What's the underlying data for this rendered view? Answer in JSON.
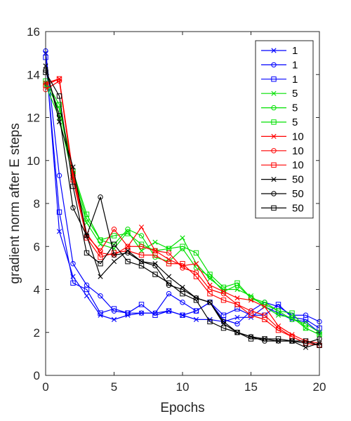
{
  "chart_data": {
    "type": "line",
    "title": "",
    "xlabel": "Epochs",
    "ylabel": "gradient norm after E steps",
    "xlim": [
      0,
      20
    ],
    "ylim": [
      0,
      16
    ],
    "xticks": [
      0,
      5,
      10,
      15,
      20
    ],
    "yticks": [
      0,
      2,
      4,
      6,
      8,
      10,
      12,
      14,
      16
    ],
    "grid": false,
    "legend_position": "top-right",
    "x": [
      0,
      1,
      2,
      3,
      4,
      5,
      6,
      7,
      8,
      9,
      10,
      11,
      12,
      13,
      14,
      15,
      16,
      17,
      18,
      19,
      20
    ],
    "series": [
      {
        "name": "1",
        "color": "#0000ff",
        "marker": "x",
        "values": [
          15.0,
          6.7,
          4.6,
          3.7,
          2.8,
          2.6,
          2.8,
          2.9,
          2.9,
          3.0,
          2.8,
          2.6,
          2.6,
          2.5,
          2.7,
          2.7,
          3.2,
          2.9,
          2.6,
          2.5,
          2.0
        ]
      },
      {
        "name": "1",
        "color": "#0000ff",
        "marker": "circle",
        "values": [
          15.1,
          9.3,
          5.2,
          4.2,
          3.7,
          3.0,
          2.9,
          2.9,
          2.9,
          3.8,
          3.4,
          3.0,
          3.4,
          2.6,
          2.4,
          3.0,
          3.4,
          3.2,
          2.8,
          2.8,
          2.5
        ]
      },
      {
        "name": "1",
        "color": "#0000ff",
        "marker": "square",
        "values": [
          14.8,
          7.6,
          4.3,
          4.0,
          2.9,
          3.1,
          2.9,
          3.3,
          2.8,
          3.0,
          2.8,
          3.0,
          3.4,
          2.8,
          3.1,
          2.8,
          2.8,
          3.3,
          2.7,
          2.6,
          2.2
        ]
      },
      {
        "name": "5",
        "color": "#00e000",
        "marker": "x",
        "values": [
          13.5,
          12.0,
          9.2,
          7.1,
          6.1,
          5.9,
          6.7,
          5.8,
          6.2,
          5.9,
          6.4,
          5.2,
          4.5,
          4.0,
          4.0,
          3.7,
          3.2,
          2.8,
          2.7,
          2.2,
          1.9
        ]
      },
      {
        "name": "5",
        "color": "#00e000",
        "marker": "circle",
        "values": [
          13.6,
          12.4,
          9.4,
          7.3,
          6.3,
          6.1,
          6.8,
          6.5,
          5.5,
          5.3,
          5.9,
          5.0,
          4.6,
          3.9,
          4.2,
          3.6,
          3.4,
          3.0,
          2.6,
          2.4,
          2.0
        ]
      },
      {
        "name": "5",
        "color": "#00e000",
        "marker": "square",
        "values": [
          13.7,
          12.6,
          9.5,
          7.5,
          6.3,
          6.5,
          6.6,
          6.1,
          5.8,
          5.9,
          6.0,
          5.7,
          4.7,
          4.1,
          4.3,
          3.6,
          3.3,
          3.0,
          2.9,
          2.2,
          1.9
        ]
      },
      {
        "name": "10",
        "color": "#ff0000",
        "marker": "x",
        "values": [
          13.6,
          13.8,
          9.4,
          6.6,
          5.7,
          5.6,
          6.0,
          6.9,
          5.8,
          5.4,
          5.1,
          5.2,
          4.2,
          3.9,
          3.6,
          3.5,
          3.2,
          2.3,
          1.9,
          1.6,
          1.5
        ]
      },
      {
        "name": "10",
        "color": "#ff0000",
        "marker": "circle",
        "values": [
          13.3,
          13.7,
          9.3,
          6.5,
          5.8,
          6.8,
          6.0,
          6.0,
          5.8,
          5.7,
          5.0,
          4.8,
          4.0,
          3.8,
          3.3,
          3.0,
          2.8,
          2.2,
          1.8,
          1.5,
          1.4
        ]
      },
      {
        "name": "10",
        "color": "#ff0000",
        "marker": "square",
        "values": [
          13.5,
          13.8,
          9.1,
          6.4,
          5.5,
          5.7,
          5.8,
          5.6,
          5.6,
          5.2,
          5.2,
          4.6,
          3.8,
          3.5,
          3.3,
          2.8,
          2.6,
          2.1,
          1.8,
          1.5,
          1.4
        ]
      },
      {
        "name": "50",
        "color": "#000000",
        "marker": "x",
        "values": [
          14.4,
          11.8,
          9.7,
          6.5,
          4.6,
          5.3,
          5.8,
          5.3,
          5.2,
          4.6,
          4.1,
          3.6,
          3.4,
          2.4,
          2.0,
          1.8,
          1.7,
          1.6,
          1.6,
          1.3,
          1.5
        ]
      },
      {
        "name": "50",
        "color": "#000000",
        "marker": "circle",
        "values": [
          14.2,
          12.1,
          7.8,
          6.5,
          8.3,
          5.6,
          5.7,
          5.3,
          5.1,
          4.2,
          4.0,
          3.6,
          3.4,
          2.5,
          2.0,
          1.8,
          1.6,
          1.6,
          1.6,
          1.5,
          1.7
        ]
      },
      {
        "name": "50",
        "color": "#000000",
        "marker": "square",
        "values": [
          14.1,
          13.0,
          8.8,
          5.7,
          5.2,
          6.1,
          5.3,
          5.1,
          4.7,
          4.3,
          3.8,
          3.5,
          2.5,
          2.2,
          2.0,
          1.7,
          1.7,
          1.7,
          1.6,
          1.6,
          1.4
        ]
      }
    ]
  }
}
